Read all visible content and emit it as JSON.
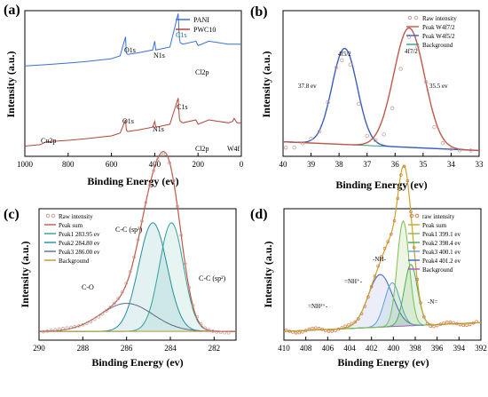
{
  "colors": {
    "pani": "#3a6fd8",
    "pwc10": "#b5453a",
    "raw": "#c8a09a",
    "fit_red": "#c0574b",
    "fit_blue": "#3b5dbf",
    "background_green": "#2f9c88",
    "peak1": "#2ea394",
    "peak2": "#1f8fa0",
    "peak3": "#5a6a8a",
    "bg_olive": "#b9982a",
    "n_peak1": "#7cc04a",
    "n_peak2": "#4aa85a",
    "n_peak3": "#5aa0d8",
    "n_peak4": "#3b5dbf",
    "n_bg": "#c04ac8",
    "raw_d": "#d67a3a",
    "peak_sum_d": "#c7a52a"
  },
  "chart_data": [
    {
      "panel": "(a)",
      "type": "line",
      "xlabel": "Binding Energy (ev)",
      "ylabel": "Intensity (a.u.)",
      "xlim": [
        1000,
        0
      ],
      "xticks": [
        1000,
        800,
        600,
        400,
        200,
        0
      ],
      "series": [
        {
          "name": "PANI",
          "x": [
            1000,
            900,
            800,
            720,
            600,
            560,
            535,
            531,
            525,
            480,
            410,
            400,
            395,
            330,
            292,
            286,
            282,
            270,
            210,
            200,
            150,
            60,
            0
          ],
          "y": [
            62,
            63,
            64,
            65,
            67,
            69,
            82,
            71,
            70,
            71,
            73,
            79,
            73,
            75,
            98,
            81,
            78,
            77,
            79,
            76,
            79,
            77,
            77
          ]
        },
        {
          "name": "PWC10",
          "x": [
            1000,
            930,
            900,
            800,
            720,
            600,
            560,
            535,
            531,
            525,
            480,
            410,
            400,
            395,
            330,
            292,
            286,
            282,
            270,
            210,
            200,
            150,
            60,
            40,
            33,
            20,
            0
          ],
          "y": [
            7,
            8,
            10,
            11,
            12,
            14,
            16,
            25,
            18,
            17,
            18,
            20,
            24,
            20,
            22,
            40,
            26,
            24,
            23,
            25,
            22,
            25,
            23,
            24,
            26,
            23,
            23
          ]
        }
      ],
      "annotations": [
        "O1s",
        "N1s",
        "C1s",
        "Cl2p",
        "O1s",
        "N1s",
        "C1s",
        "Cl2p",
        "Cu2p",
        "W4f"
      ]
    },
    {
      "panel": "(b)",
      "type": "line",
      "xlabel": "Binding Energy (ev)",
      "ylabel": "Intensity (a.u.)",
      "xlim": [
        40,
        33
      ],
      "xticks": [
        40,
        39,
        38,
        37,
        36,
        35,
        34,
        33
      ],
      "series": [
        {
          "name": "Raw intensity",
          "x": [
            39.9,
            39.6,
            39.3,
            39.0,
            38.7,
            38.4,
            38.1,
            37.9,
            37.6,
            37.3,
            37.0,
            36.7,
            36.4,
            36.1,
            35.8,
            35.5,
            35.2,
            34.9,
            34.6,
            34.3,
            34.0,
            33.7,
            33.3
          ],
          "y": [
            0.06,
            0.06,
            0.09,
            0.12,
            0.17,
            0.37,
            0.61,
            0.66,
            0.63,
            0.36,
            0.14,
            0.11,
            0.15,
            0.33,
            0.6,
            0.82,
            0.75,
            0.51,
            0.2,
            0.09,
            0.05,
            0.04,
            0.04
          ]
        },
        {
          "name": "Peak W4f7/2",
          "center": 35.5,
          "height": 0.82,
          "width": 0.55
        },
        {
          "name": "Peak W4f5/2",
          "center": 37.8,
          "height": 0.66,
          "width": 0.45
        },
        {
          "name": "Background",
          "x": [
            40,
            33
          ],
          "y": [
            0.1,
            0.04
          ]
        }
      ],
      "annotations": [
        "4f5/2",
        "4f7/2",
        "37.8 ev",
        "35.5 ev"
      ]
    },
    {
      "panel": "(c)",
      "type": "line",
      "xlabel": "Binding Energy (ev)",
      "ylabel": "Intensity (a.u.)",
      "xlim": [
        290,
        281
      ],
      "xticks": [
        290,
        288,
        286,
        284,
        282
      ],
      "series": [
        {
          "name": "Raw intensity"
        },
        {
          "name": "Peak sum"
        },
        {
          "name": "Peak1 283.95 ev",
          "center": 283.95,
          "height": 0.62,
          "width": 0.55
        },
        {
          "name": "Peak2 284.80 ev",
          "center": 284.8,
          "height": 0.62,
          "width": 0.65
        },
        {
          "name": "Peak3 286.00 ev",
          "center": 286.0,
          "height": 0.16,
          "width": 1.2
        },
        {
          "name": "Background",
          "x": [
            290,
            281
          ],
          "y": [
            0.05,
            0.05
          ]
        }
      ],
      "annotations": [
        "C-C (sp³)",
        "C-O",
        "C-C (sp²)"
      ]
    },
    {
      "panel": "(d)",
      "type": "line",
      "xlabel": "Binding Energy (ev)",
      "ylabel": "Intensity (a.u.)",
      "xlim": [
        410,
        392
      ],
      "xticks": [
        410,
        408,
        406,
        404,
        402,
        400,
        398,
        396,
        394,
        392
      ],
      "series": [
        {
          "name": "raw intensity"
        },
        {
          "name": "Peak sum"
        },
        {
          "name": "Peak1 399.1 ev",
          "center": 399.1,
          "height": 0.6,
          "width": 0.55
        },
        {
          "name": "Peak2 398.4 ev",
          "center": 398.4,
          "height": 0.35,
          "width": 0.6
        },
        {
          "name": "Peak3 400.1 ev",
          "center": 400.1,
          "height": 0.25,
          "width": 0.7
        },
        {
          "name": "Peak4 401.2 ev",
          "center": 401.2,
          "height": 0.3,
          "width": 1.1
        },
        {
          "name": "Background",
          "x": [
            410,
            392
          ],
          "y": [
            0.05,
            0.1
          ]
        }
      ],
      "annotations": [
        "=NH⁺-",
        "=NH²⁺-",
        "-NH-",
        "-N="
      ]
    }
  ]
}
